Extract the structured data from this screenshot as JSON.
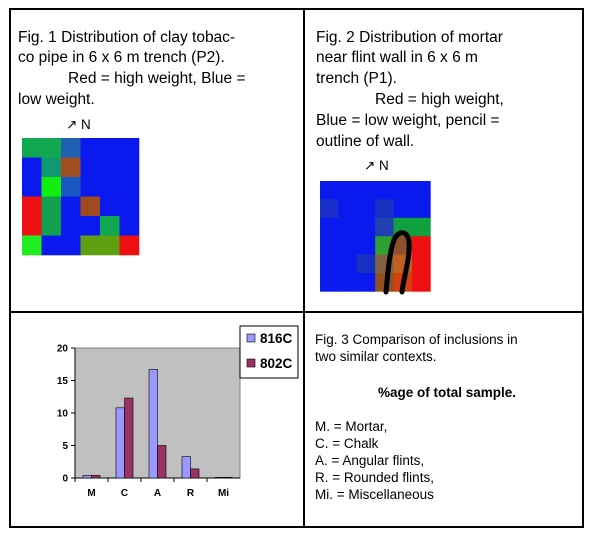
{
  "fig1": {
    "lines": [
      "Fig. 1  Distribution of clay tobac-",
      "co pipe in 6 x 6 m trench (P2).",
      "Red = high weight, Blue =",
      "low weight."
    ],
    "north": "↗ N",
    "grid": [
      [
        "#10a850",
        "#10a850",
        "#2060b0",
        "#0a1aee",
        "#0a1aee",
        "#0a1aee"
      ],
      [
        "#0a1aee",
        "#109870",
        "#a05020",
        "#0a1aee",
        "#0a1aee",
        "#0a1aee"
      ],
      [
        "#0a1aee",
        "#10ee10",
        "#1858c0",
        "#0a1aee",
        "#0a1aee",
        "#0a1aee"
      ],
      [
        "#ee1010",
        "#10a050",
        "#0a1aee",
        "#a04a20",
        "#0a1aee",
        "#0a1aee"
      ],
      [
        "#ee1010",
        "#10a050",
        "#0a1aee",
        "#0a1aee",
        "#10a850",
        "#0a1aee"
      ],
      [
        "#20ee20",
        "#0a1aee",
        "#0a1aee",
        "#60a010",
        "#60a010",
        "#ee1010"
      ]
    ]
  },
  "fig2": {
    "lines": [
      "Fig. 2  Distribution of mortar",
      "near flint wall in 6 x 6 m",
      "trench (P1).",
      "Red = high weight,",
      "Blue = low weight, pencil =",
      "outline of wall."
    ],
    "north": "↗ N",
    "grid": [
      [
        "#0a1aee",
        "#0a1aee",
        "#0a1aee",
        "#0a1aee",
        "#0a1aee",
        "#0a1aee"
      ],
      [
        "#1a30c8",
        "#0a1aee",
        "#0a1aee",
        "#1830c0",
        "#0a1aee",
        "#0a1aee"
      ],
      [
        "#0a1aee",
        "#0a1aee",
        "#0a1aee",
        "#2040b0",
        "#10a040",
        "#10a040"
      ],
      [
        "#0a1aee",
        "#0a1aee",
        "#0a1aee",
        "#30a030",
        "#905030",
        "#ee1010"
      ],
      [
        "#0a1aee",
        "#0a1aee",
        "#1830c0",
        "#806040",
        "#c06020",
        "#ee1010"
      ],
      [
        "#0a1aee",
        "#0a1aee",
        "#0a1aee",
        "#905020",
        "#d04010",
        "#ee1010"
      ]
    ]
  },
  "fig3": {
    "lines": [
      "Fig. 3  Comparison of inclusions in",
      "two similar contexts."
    ],
    "heading": "%age of total sample.",
    "key": [
      "M. = Mortar,",
      "C. = Chalk",
      "A. = Angular flints,",
      "R. = Rounded flints,",
      "Mi. = Miscellaneous"
    ]
  },
  "chart_data": {
    "type": "bar",
    "categories": [
      "M",
      "C",
      "A",
      "R",
      "Mi"
    ],
    "series": [
      {
        "name": "816C",
        "color": "#9999ff",
        "values": [
          0.4,
          10.8,
          16.7,
          3.3,
          0.1
        ]
      },
      {
        "name": "802C",
        "color": "#993366",
        "values": [
          0.4,
          12.3,
          5,
          1.4,
          0.1
        ]
      }
    ],
    "ylim": [
      0,
      20
    ],
    "yticks": [
      0,
      5,
      10,
      15,
      20
    ],
    "plot_background": "#c0c0c0"
  }
}
